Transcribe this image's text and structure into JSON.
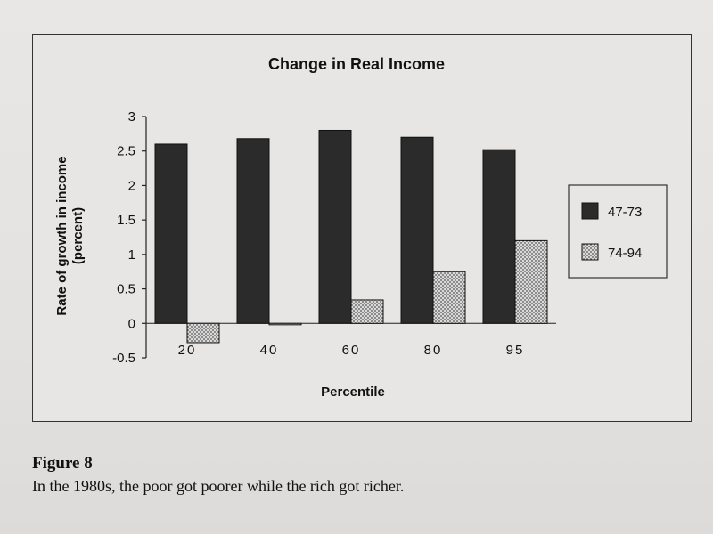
{
  "figure": {
    "label": "Figure 8",
    "caption": "In the 1980s, the poor got poorer while the rich got richer."
  },
  "chart_data": {
    "type": "bar",
    "title": "Change in Real Income",
    "xlabel": "Percentile",
    "ylabel_line1": "Rate of growth in income",
    "ylabel_line2": "(percent)",
    "categories": [
      "20",
      "40",
      "60",
      "80",
      "95"
    ],
    "series": [
      {
        "name": "47-73",
        "values": [
          2.6,
          2.68,
          2.8,
          2.7,
          2.52
        ],
        "color": "#2b2b2b",
        "pattern": "solid"
      },
      {
        "name": "74-94",
        "values": [
          -0.28,
          -0.02,
          0.34,
          0.75,
          1.2
        ],
        "color": "#bdbdbd",
        "pattern": "dotted"
      }
    ],
    "ylim": [
      -0.5,
      3
    ],
    "yticks": [
      "3",
      "2.5",
      "2",
      "1.5",
      "1",
      "0.5",
      "0",
      "-0.5"
    ],
    "ytick_values": [
      3,
      2.5,
      2,
      1.5,
      1,
      0.5,
      0,
      -0.5
    ],
    "legend_position": "right",
    "grid": false
  }
}
